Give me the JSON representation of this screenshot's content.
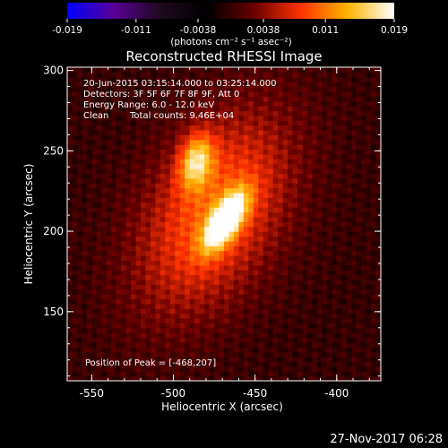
{
  "chart_data": {
    "type": "heatmap",
    "title": "Reconstructed RHESSI Image",
    "xlabel": "Heliocentric X (arcsec)",
    "ylabel": "Heliocentric Y (arcsec)",
    "xlim": [
      -565,
      -373
    ],
    "ylim": [
      107,
      302
    ],
    "x_ticks": [
      "-550",
      "-500",
      "-450",
      "-400"
    ],
    "x_tick_values": [
      -550,
      -500,
      -450,
      -400
    ],
    "y_ticks": [
      "150",
      "200",
      "250",
      "300"
    ],
    "y_tick_values": [
      150,
      200,
      250,
      300
    ],
    "colorbar": {
      "ticks": [
        "-0.019",
        "-0.011",
        "-0.0038",
        "0.0038",
        "0.011",
        "0.019"
      ],
      "tick_values": [
        -0.019,
        -0.011,
        -0.0038,
        0.0038,
        0.011,
        0.019
      ],
      "range": [
        -0.019,
        0.019
      ],
      "unit_label": "(photons cm⁻² s⁻¹ asec⁻²)",
      "colormap": [
        "#0000ff",
        "#5a0096",
        "#1e0a1e",
        "#000000",
        "#6a0000",
        "#ff3200",
        "#ffb400",
        "#ffffff"
      ]
    },
    "annotations": [
      "20-Jun-2015 03:15:14.000 to 03:25:14.000",
      "Detectors: 3F 5F 6F 7F 8F 9F, Att 0",
      "Energy Range: 6.0 - 12.0 keV",
      "Clean",
      "Total counts: 9.46E+04",
      "Position of Peak = [-468,207]"
    ],
    "sources": [
      {
        "x": -468,
        "y": 207,
        "peak": 0.019,
        "sigma_major": 14,
        "sigma_minor": 6,
        "orientation_deg": 58
      },
      {
        "x": -486,
        "y": 244,
        "peak": 0.012,
        "sigma_major": 12,
        "sigma_minor": 7,
        "orientation_deg": 78
      },
      {
        "x": -475,
        "y": 212,
        "peak": 0.01,
        "sigma_major": 48,
        "sigma_minor": 28,
        "orientation_deg": 62
      }
    ]
  },
  "footer": {
    "date": "27-Nov-2017 06:28"
  }
}
